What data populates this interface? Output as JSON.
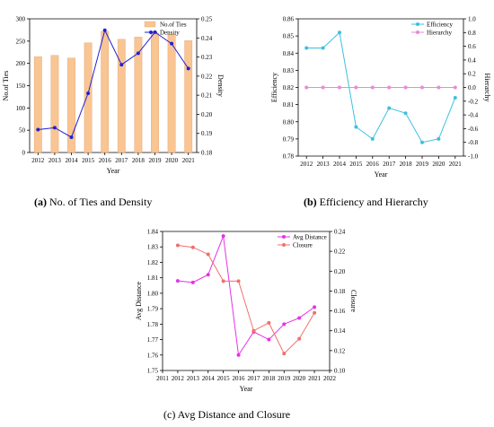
{
  "captions": {
    "a_letter": "(a)",
    "a_text": " No. of Ties and Density",
    "b_letter": "(b)",
    "b_text": " Efficiency and Hierarchy",
    "c_text": "(c) Avg Distance and Closure"
  },
  "chart_data": [
    {
      "id": "a",
      "type": "bar+line",
      "categories": [
        "2012",
        "2013",
        "2014",
        "2015",
        "2016",
        "2017",
        "2018",
        "2019",
        "2020",
        "2021"
      ],
      "xlabel": "Year",
      "ylabel_left": "No.of Ties",
      "ylabel_right": "Density",
      "ylim_left": [
        0,
        300
      ],
      "ylim_right": [
        0.18,
        0.25
      ],
      "yticks_left": [
        0,
        50,
        100,
        150,
        200,
        250,
        300
      ],
      "yticks_right": [
        0.18,
        0.19,
        0.2,
        0.21,
        0.22,
        0.23,
        0.24,
        0.25
      ],
      "series": [
        {
          "name": "No.of Ties",
          "kind": "bar",
          "axis": "left",
          "color": "#f9c593",
          "values": [
            215,
            218,
            212,
            246,
            272,
            254,
            259,
            268,
            265,
            251
          ]
        },
        {
          "name": "Density",
          "kind": "line",
          "axis": "right",
          "color": "#2121d6",
          "values": [
            0.192,
            0.193,
            0.188,
            0.211,
            0.244,
            0.226,
            0.232,
            0.243,
            0.237,
            0.224
          ]
        }
      ],
      "legend": "top-right"
    },
    {
      "id": "b",
      "type": "line",
      "categories": [
        "2012",
        "2013",
        "2014",
        "2015",
        "2016",
        "2017",
        "2018",
        "2019",
        "2020",
        "2021"
      ],
      "xlabel": "Year",
      "ylabel_left": "Efficiency",
      "ylabel_right": "Hierarchy",
      "ylim_left": [
        0.78,
        0.86
      ],
      "ylim_right": [
        -1.0,
        1.0
      ],
      "yticks_left": [
        0.78,
        0.79,
        0.8,
        0.81,
        0.82,
        0.83,
        0.84,
        0.85,
        0.86
      ],
      "yticks_right": [
        -1.0,
        -0.8,
        -0.6,
        -0.4,
        -0.2,
        0.0,
        0.2,
        0.4,
        0.6,
        0.8,
        1.0
      ],
      "series": [
        {
          "name": "Efficiency",
          "axis": "left",
          "color": "#3cc0df",
          "values": [
            0.843,
            0.843,
            0.852,
            0.797,
            0.79,
            0.808,
            0.805,
            0.788,
            0.79,
            0.814
          ]
        },
        {
          "name": "Hierarchy",
          "axis": "right",
          "color": "#e98ad6",
          "values": [
            0,
            0,
            0,
            0,
            0,
            0,
            0,
            0,
            0,
            0
          ]
        }
      ],
      "legend": "top-right"
    },
    {
      "id": "c",
      "type": "line",
      "x": [
        2012,
        2013,
        2014,
        2015,
        2016,
        2017,
        2018,
        2019,
        2020,
        2021
      ],
      "xticks": [
        "2011",
        "2012",
        "2013",
        "2014",
        "2015",
        "2016",
        "2017",
        "2018",
        "2019",
        "2020",
        "2021",
        "2022"
      ],
      "xlim": [
        2011,
        2022
      ],
      "xlabel": "Year",
      "ylabel_left": "Avg Distance",
      "ylabel_right": "Closure",
      "ylim_left": [
        1.75,
        1.84
      ],
      "ylim_right": [
        0.1,
        0.24
      ],
      "yticks_left": [
        1.75,
        1.76,
        1.77,
        1.78,
        1.79,
        1.8,
        1.81,
        1.82,
        1.83,
        1.84
      ],
      "yticks_right": [
        0.1,
        0.12,
        0.14,
        0.16,
        0.18,
        0.2,
        0.22,
        0.24
      ],
      "series": [
        {
          "name": "Avg Distance",
          "axis": "left",
          "color": "#e632e6",
          "values": [
            1.808,
            1.807,
            1.812,
            1.837,
            1.76,
            1.775,
            1.77,
            1.78,
            1.784,
            1.791
          ]
        },
        {
          "name": "Closure",
          "axis": "right",
          "color": "#f0706a",
          "values": [
            0.226,
            0.224,
            0.217,
            0.19,
            0.19,
            0.14,
            0.148,
            0.117,
            0.132,
            0.158
          ]
        }
      ],
      "legend": "top-right"
    }
  ]
}
